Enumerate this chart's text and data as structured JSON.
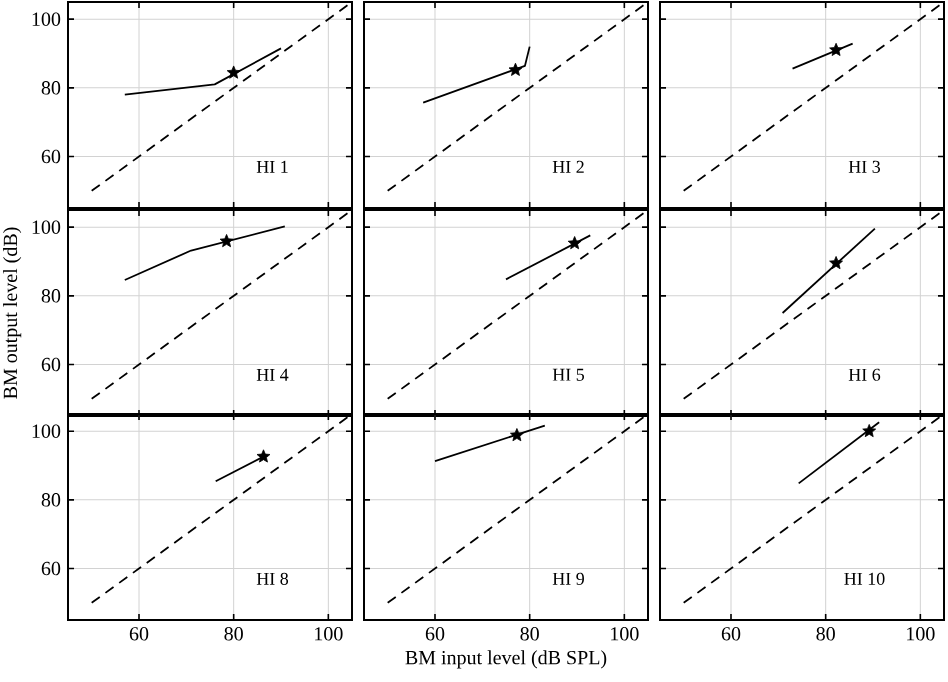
{
  "chart_data": [
    {
      "type": "line",
      "annotations": [
        "HI 1"
      ],
      "xlim": [
        45,
        105
      ],
      "ylim": [
        45,
        105
      ],
      "xticks": [
        60,
        80,
        100
      ],
      "yticks": [
        60,
        80,
        100
      ],
      "grid": true,
      "tick_labels": "y",
      "series": [
        {
          "type": "line",
          "color": "#000000",
          "line_style": "dashed",
          "x": [
            50,
            105
          ],
          "values": [
            50,
            105
          ]
        },
        {
          "type": "line",
          "color": "#000000",
          "line_style": "solid",
          "x": [
            57,
            76,
            90
          ],
          "values": [
            78,
            81,
            91.5
          ]
        },
        {
          "type": "scatter",
          "color": "#000000",
          "marker": "star",
          "x": [
            80
          ],
          "values": [
            84.4
          ]
        }
      ]
    },
    {
      "type": "line",
      "annotations": [
        "HI 2"
      ],
      "xlim": [
        45,
        105
      ],
      "ylim": [
        45,
        105
      ],
      "xticks": [
        60,
        80,
        100
      ],
      "yticks": [
        60,
        80,
        100
      ],
      "grid": true,
      "tick_labels": false,
      "series": [
        {
          "type": "line",
          "color": "#000000",
          "line_style": "dashed",
          "x": [
            50,
            105
          ],
          "values": [
            50,
            105
          ]
        },
        {
          "type": "line",
          "color": "#000000",
          "line_style": "solid",
          "x": [
            57.5,
            79,
            80
          ],
          "values": [
            75.7,
            86.4,
            92
          ]
        },
        {
          "type": "scatter",
          "color": "#000000",
          "marker": "star",
          "x": [
            77
          ],
          "values": [
            85.2
          ]
        }
      ]
    },
    {
      "type": "line",
      "annotations": [
        "HI 3"
      ],
      "xlim": [
        45,
        105
      ],
      "ylim": [
        45,
        105
      ],
      "xticks": [
        60,
        80,
        100
      ],
      "yticks": [
        60,
        80,
        100
      ],
      "grid": true,
      "tick_labels": false,
      "series": [
        {
          "type": "line",
          "color": "#000000",
          "line_style": "dashed",
          "x": [
            50,
            105
          ],
          "values": [
            50,
            105
          ]
        },
        {
          "type": "line",
          "color": "#000000",
          "line_style": "solid",
          "x": [
            73,
            85.7
          ],
          "values": [
            85.6,
            92.9
          ]
        },
        {
          "type": "scatter",
          "color": "#000000",
          "marker": "star",
          "x": [
            82.2
          ],
          "values": [
            91
          ]
        }
      ]
    },
    {
      "type": "line",
      "annotations": [
        "HI 4"
      ],
      "ylabel": "BM output level (dB)",
      "xlim": [
        45,
        105
      ],
      "ylim": [
        45,
        105
      ],
      "xticks": [
        60,
        80,
        100
      ],
      "yticks": [
        60,
        80,
        100
      ],
      "grid": true,
      "tick_labels": "y",
      "series": [
        {
          "type": "line",
          "color": "#000000",
          "line_style": "dashed",
          "x": [
            50,
            105
          ],
          "values": [
            50,
            105
          ]
        },
        {
          "type": "line",
          "color": "#000000",
          "line_style": "solid",
          "x": [
            57,
            71,
            90.8
          ],
          "values": [
            84.6,
            93.2,
            100.2
          ]
        },
        {
          "type": "scatter",
          "color": "#000000",
          "marker": "star",
          "x": [
            78.5
          ],
          "values": [
            95.9
          ]
        }
      ]
    },
    {
      "type": "line",
      "annotations": [
        "HI 5"
      ],
      "xlim": [
        45,
        105
      ],
      "ylim": [
        45,
        105
      ],
      "xticks": [
        60,
        80,
        100
      ],
      "yticks": [
        60,
        80,
        100
      ],
      "grid": true,
      "tick_labels": false,
      "series": [
        {
          "type": "line",
          "color": "#000000",
          "line_style": "dashed",
          "x": [
            50,
            105
          ],
          "values": [
            50,
            105
          ]
        },
        {
          "type": "line",
          "color": "#000000",
          "line_style": "solid",
          "x": [
            75,
            92.8
          ],
          "values": [
            84.8,
            97.6
          ]
        },
        {
          "type": "scatter",
          "color": "#000000",
          "marker": "star",
          "x": [
            89.5
          ],
          "values": [
            95.3
          ]
        }
      ]
    },
    {
      "type": "line",
      "annotations": [
        "HI 6"
      ],
      "xlim": [
        45,
        105
      ],
      "ylim": [
        45,
        105
      ],
      "xticks": [
        60,
        80,
        100
      ],
      "yticks": [
        60,
        80,
        100
      ],
      "grid": true,
      "tick_labels": false,
      "series": [
        {
          "type": "line",
          "color": "#000000",
          "line_style": "dashed",
          "x": [
            50,
            105
          ],
          "values": [
            50,
            105
          ]
        },
        {
          "type": "line",
          "color": "#000000",
          "line_style": "solid",
          "x": [
            70.9,
            90.4
          ],
          "values": [
            75,
            99.6
          ]
        },
        {
          "type": "scatter",
          "color": "#000000",
          "marker": "star",
          "x": [
            82.2
          ],
          "values": [
            89.5
          ]
        }
      ]
    },
    {
      "type": "line",
      "annotations": [
        "HI 8"
      ],
      "xlim": [
        45,
        105
      ],
      "ylim": [
        45,
        105
      ],
      "xticks": [
        60,
        80,
        100
      ],
      "yticks": [
        60,
        80,
        100
      ],
      "grid": true,
      "series": [
        {
          "type": "line",
          "color": "#000000",
          "line_style": "dashed",
          "x": [
            50,
            105
          ],
          "values": [
            50,
            105
          ]
        },
        {
          "type": "line",
          "color": "#000000",
          "line_style": "solid",
          "x": [
            76.2,
            86.3
          ],
          "values": [
            85.4,
            92.6
          ]
        },
        {
          "type": "scatter",
          "color": "#000000",
          "marker": "star",
          "x": [
            86.3
          ],
          "values": [
            92.6
          ]
        }
      ]
    },
    {
      "type": "line",
      "annotations": [
        "HI 9"
      ],
      "xlabel": "BM input level (dB SPL)",
      "xlim": [
        45,
        105
      ],
      "ylim": [
        45,
        105
      ],
      "xticks": [
        60,
        80,
        100
      ],
      "yticks": [
        60,
        80,
        100
      ],
      "grid": true,
      "tick_labels": "x",
      "series": [
        {
          "type": "line",
          "color": "#000000",
          "line_style": "dashed",
          "x": [
            50,
            105
          ],
          "values": [
            50,
            105
          ]
        },
        {
          "type": "line",
          "color": "#000000",
          "line_style": "solid",
          "x": [
            60,
            83.2
          ],
          "values": [
            91.3,
            101.6
          ]
        },
        {
          "type": "scatter",
          "color": "#000000",
          "marker": "star",
          "x": [
            77.3
          ],
          "values": [
            98.8
          ]
        }
      ]
    },
    {
      "type": "line",
      "annotations": [
        "HI 10"
      ],
      "xlim": [
        45,
        105
      ],
      "ylim": [
        45,
        105
      ],
      "xticks": [
        60,
        80,
        100
      ],
      "yticks": [
        60,
        80,
        100
      ],
      "grid": true,
      "tick_labels": "x",
      "series": [
        {
          "type": "line",
          "color": "#000000",
          "line_style": "dashed",
          "x": [
            50,
            105
          ],
          "values": [
            50,
            105
          ]
        },
        {
          "type": "line",
          "color": "#000000",
          "line_style": "solid",
          "x": [
            74.3,
            91.3
          ],
          "values": [
            84.8,
            102.6
          ]
        },
        {
          "type": "scatter",
          "color": "#000000",
          "marker": "star",
          "x": [
            89.2
          ],
          "values": [
            100
          ]
        }
      ]
    }
  ]
}
